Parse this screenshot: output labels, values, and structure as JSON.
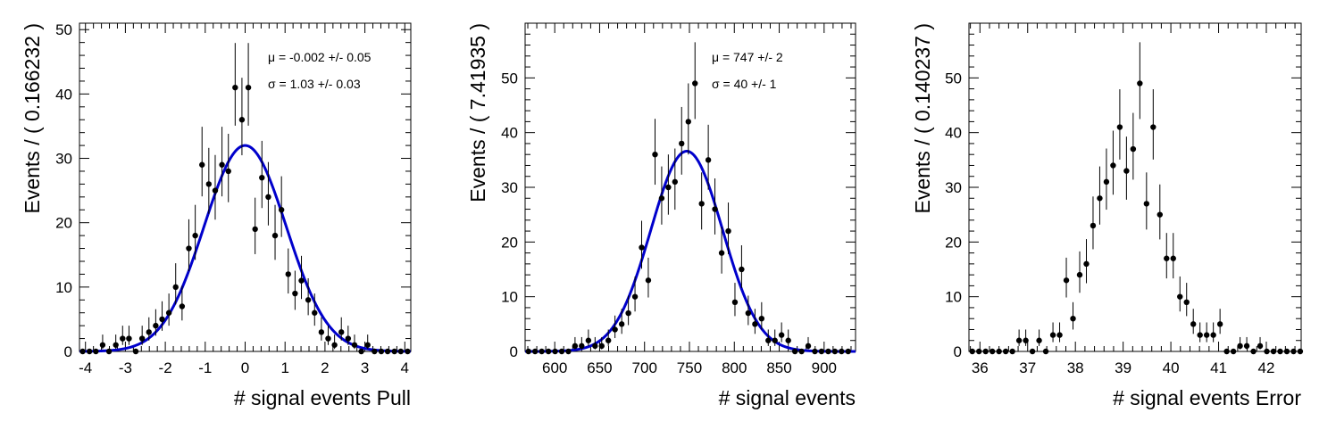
{
  "chart_data": [
    {
      "type": "scatter",
      "title": "",
      "xlabel": "# signal events Pull",
      "ylabel": "Events / ( 0.166232 )",
      "xlim": [
        -4.15,
        4.15
      ],
      "ylim": [
        0,
        51
      ],
      "xticks": [
        -4,
        -3,
        -2,
        -1,
        0,
        1,
        2,
        3,
        4
      ],
      "yticks": [
        0,
        10,
        20,
        30,
        40,
        50
      ],
      "fit": {
        "type": "gaussian",
        "color": "#0000cc",
        "mean": 0.0,
        "sigma": 1.03,
        "amplitude": 32
      },
      "stats": [
        "μ = -0.002 +/- 0.05",
        "σ =  1.03 +/- 0.03"
      ],
      "x": [
        -4.07,
        -3.9,
        -3.74,
        -3.57,
        -3.41,
        -3.24,
        -3.07,
        -2.91,
        -2.74,
        -2.58,
        -2.41,
        -2.24,
        -2.08,
        -1.91,
        -1.74,
        -1.58,
        -1.41,
        -1.25,
        -1.08,
        -0.91,
        -0.75,
        -0.58,
        -0.42,
        -0.25,
        -0.08,
        0.08,
        0.25,
        0.42,
        0.58,
        0.75,
        0.91,
        1.08,
        1.25,
        1.41,
        1.58,
        1.74,
        1.91,
        2.08,
        2.24,
        2.41,
        2.58,
        2.74,
        2.91,
        3.07,
        3.24,
        3.41,
        3.57,
        3.74,
        3.9,
        4.07
      ],
      "values": [
        0,
        0,
        0,
        1,
        0,
        1,
        2,
        2,
        0,
        2,
        3,
        4,
        5,
        6,
        10,
        7,
        16,
        18,
        29,
        26,
        25,
        29,
        28,
        41,
        36,
        41,
        19,
        27,
        24,
        18,
        22,
        12,
        9,
        11,
        8,
        6,
        3,
        2,
        1,
        3,
        2,
        1,
        0,
        1,
        0,
        0,
        0,
        0,
        0,
        0
      ]
    },
    {
      "type": "scatter",
      "title": "",
      "xlabel": "# signal events",
      "ylabel": "Events / ( 7.41935 )",
      "xlim": [
        567,
        935
      ],
      "ylim": [
        0,
        60
      ],
      "xticks": [
        600,
        650,
        700,
        750,
        800,
        850,
        900
      ],
      "yticks": [
        0,
        10,
        20,
        30,
        40,
        50
      ],
      "fit": {
        "type": "gaussian",
        "color": "#0000cc",
        "mean": 747,
        "sigma": 40,
        "amplitude": 36.6
      },
      "stats": [
        "μ =  747 +/- 2",
        "σ =  40 +/- 1"
      ],
      "x": [
        570.7,
        578.1,
        585.5,
        593.0,
        600.4,
        607.8,
        615.2,
        622.6,
        630.0,
        637.5,
        644.9,
        652.3,
        659.7,
        667.1,
        674.6,
        682.0,
        689.4,
        696.8,
        704.2,
        711.7,
        719.1,
        726.5,
        733.9,
        741.3,
        748.8,
        756.2,
        763.6,
        771.0,
        778.4,
        785.9,
        793.3,
        800.7,
        808.1,
        815.5,
        823.0,
        830.4,
        837.8,
        845.2,
        852.6,
        860.1,
        867.5,
        874.9,
        882.3,
        889.7,
        897.1,
        904.6,
        912.0,
        919.4,
        926.8
      ],
      "values": [
        0,
        0,
        0,
        0,
        0,
        0,
        0,
        1,
        1,
        2,
        1,
        1,
        2,
        4,
        5,
        7,
        10,
        19,
        13,
        36,
        28,
        30,
        31,
        38,
        42,
        49,
        27,
        35,
        26,
        18,
        22,
        9,
        15,
        7,
        5,
        6,
        2,
        2,
        3,
        2,
        0,
        0,
        1,
        0,
        0,
        0,
        0,
        0,
        0
      ]
    },
    {
      "type": "scatter",
      "title": "",
      "xlabel": "# signal events Error",
      "ylabel": "Events / ( 0.140237 )",
      "xlim": [
        35.77,
        42.73
      ],
      "ylim": [
        0,
        60
      ],
      "xticks": [
        36,
        37,
        38,
        39,
        40,
        41,
        42
      ],
      "yticks": [
        0,
        10,
        20,
        30,
        40,
        50
      ],
      "x": [
        35.84,
        35.98,
        36.12,
        36.26,
        36.4,
        36.54,
        36.68,
        36.82,
        36.96,
        37.1,
        37.24,
        37.38,
        37.53,
        37.67,
        37.81,
        37.95,
        38.09,
        38.23,
        38.37,
        38.51,
        38.65,
        38.79,
        38.93,
        39.07,
        39.21,
        39.35,
        39.49,
        39.63,
        39.77,
        39.91,
        40.05,
        40.19,
        40.33,
        40.47,
        40.61,
        40.75,
        40.89,
        41.03,
        41.17,
        41.31,
        41.45,
        41.59,
        41.73,
        41.87,
        42.01,
        42.15,
        42.29,
        42.43,
        42.57,
        42.71
      ],
      "values": [
        0,
        0,
        0,
        0,
        0,
        0,
        0,
        2,
        2,
        0,
        2,
        0,
        3,
        3,
        13,
        6,
        14,
        16,
        23,
        28,
        31,
        34,
        41,
        33,
        37,
        49,
        27,
        41,
        25,
        17,
        17,
        10,
        9,
        5,
        3,
        3,
        3,
        5,
        0,
        0,
        1,
        1,
        0,
        1,
        0,
        0,
        0,
        0,
        0,
        0
      ]
    }
  ]
}
